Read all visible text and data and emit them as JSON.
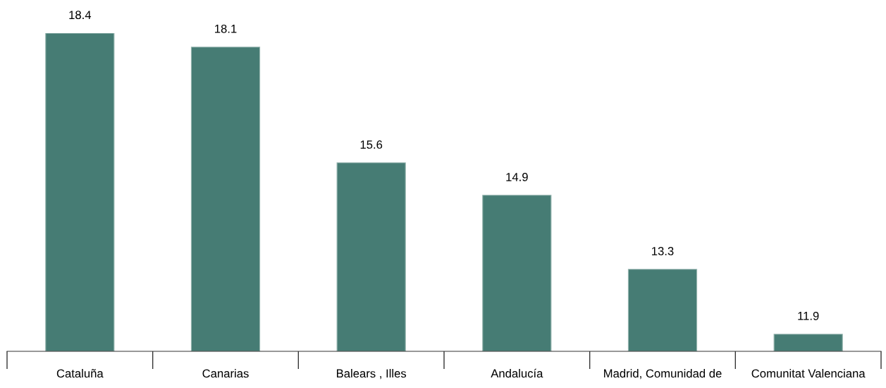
{
  "chart_data": {
    "type": "bar",
    "categories": [
      "Cataluña",
      "Canarias",
      "Balears , Illes",
      "Andalucía",
      "Madrid, Comunidad de",
      "Comunitat Valenciana"
    ],
    "values": [
      18.4,
      18.1,
      15.6,
      14.9,
      13.3,
      11.9
    ],
    "color": "#467c74",
    "ylim": [
      11.53,
      18.4
    ],
    "tick_labels": "x",
    "data_labels": true,
    "grid": false,
    "legend": false
  }
}
